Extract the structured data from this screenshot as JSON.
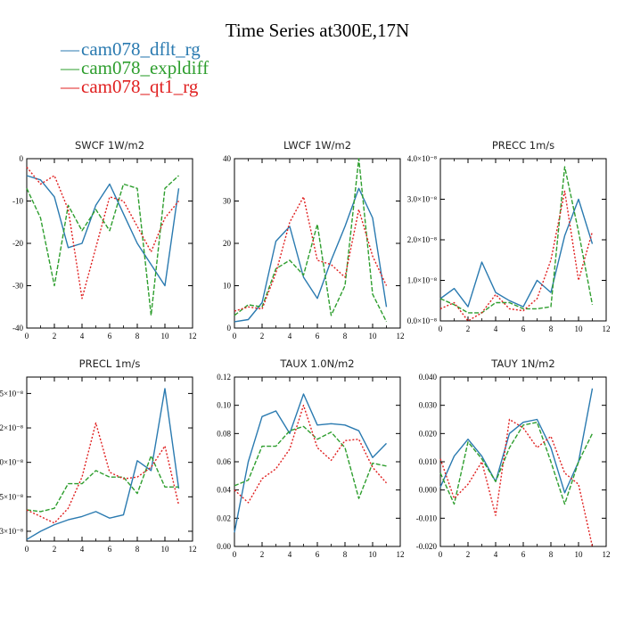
{
  "figure": {
    "title": "Time Series at300E,17N",
    "colors": {
      "dflt": "#2a7ab0",
      "expl": "#2e9e2e",
      "qt1": "#e02020"
    },
    "legend": [
      {
        "label": "cam078_dflt_rg",
        "color": "#2a7ab0",
        "marker": "—"
      },
      {
        "label": "cam078_expldiff",
        "color": "#2e9e2e",
        "marker": "—"
      },
      {
        "label": "cam078_qt1_rg",
        "color": "#e02020",
        "marker": "—"
      }
    ]
  },
  "chart_data": [
    {
      "type": "line",
      "title": "SWCF   1W/m2",
      "xlim": [
        0,
        12
      ],
      "ylim": [
        -40,
        0
      ],
      "x_ticks": [
        0,
        2,
        4,
        6,
        8,
        10,
        12
      ],
      "x_tick_labels": [
        "0",
        "2",
        "4",
        "6",
        "8",
        "10",
        "12"
      ],
      "y_ticks": [
        -40,
        -30,
        -20,
        -10,
        0
      ],
      "y_tick_labels": [
        "-40",
        "-30",
        "-20",
        "-10",
        "0"
      ],
      "x": [
        0,
        1,
        2,
        3,
        4,
        5,
        6,
        7,
        8,
        9,
        10,
        11
      ],
      "series": [
        {
          "name": "cam078_dflt_rg",
          "values": [
            -4,
            -5,
            -9,
            -21,
            -20,
            -11,
            -6,
            -13,
            -20,
            -25,
            -30,
            -7
          ]
        },
        {
          "name": "cam078_expldiff",
          "values": [
            -7,
            -14,
            -30,
            -11,
            -17,
            -12,
            -17,
            -6,
            -7,
            -37,
            -7,
            -4
          ]
        },
        {
          "name": "cam078_qt1_rg",
          "values": [
            -2,
            -6,
            -4,
            -12,
            -33,
            -21,
            -9,
            -10,
            -16,
            -22,
            -14,
            -10
          ]
        }
      ]
    },
    {
      "type": "line",
      "title": "LWCF   1W/m2",
      "xlim": [
        0,
        12
      ],
      "ylim": [
        0,
        40
      ],
      "x_ticks": [
        0,
        2,
        4,
        6,
        8,
        10,
        12
      ],
      "x_tick_labels": [
        "0",
        "2",
        "4",
        "6",
        "8",
        "10",
        "12"
      ],
      "y_ticks": [
        0,
        10,
        20,
        30,
        40
      ],
      "y_tick_labels": [
        "0",
        "10",
        "20",
        "30",
        "40"
      ],
      "x": [
        0,
        1,
        2,
        3,
        4,
        5,
        6,
        7,
        8,
        9,
        10,
        11
      ],
      "series": [
        {
          "name": "cam078_dflt_rg",
          "values": [
            1.5,
            2,
            6,
            20.5,
            24,
            12,
            7,
            16,
            24,
            33,
            26,
            5
          ]
        },
        {
          "name": "cam078_expldiff",
          "values": [
            3,
            5.5,
            5,
            14,
            16,
            12.5,
            24.5,
            3,
            10,
            40,
            8,
            1.5
          ]
        },
        {
          "name": "cam078_qt1_rg",
          "values": [
            4,
            5,
            4.5,
            13,
            25,
            31,
            16,
            15,
            12,
            28,
            17,
            10
          ]
        }
      ]
    },
    {
      "type": "line",
      "title": "PRECC   1m/s",
      "xlim": [
        0,
        12
      ],
      "ylim": [
        0,
        4e-08
      ],
      "x_ticks": [
        0,
        2,
        4,
        6,
        8,
        10,
        12
      ],
      "x_tick_labels": [
        "0",
        "2",
        "4",
        "6",
        "8",
        "10",
        "12"
      ],
      "y_ticks": [
        0,
        1e-08,
        2e-08,
        3e-08,
        4e-08
      ],
      "y_tick_labels": [
        "0.0×10⁻⁸",
        "1.0×10⁻⁸",
        "2.0×10⁻⁸",
        "3.0×10⁻⁸",
        "4.0×10⁻⁸"
      ],
      "x": [
        0,
        1,
        2,
        3,
        4,
        5,
        6,
        7,
        8,
        9,
        10,
        11
      ],
      "series": [
        {
          "name": "cam078_dflt_rg",
          "values": [
            5.5e-09,
            8e-09,
            3.5e-09,
            1.45e-08,
            7e-09,
            5e-09,
            3.5e-09,
            1e-08,
            7e-09,
            2.1e-08,
            3e-08,
            1.9e-08
          ]
        },
        {
          "name": "cam078_expldiff",
          "values": [
            5.5e-09,
            4e-09,
            2e-09,
            2e-09,
            4.5e-09,
            4.5e-09,
            3e-09,
            3e-09,
            3.5e-09,
            3.8e-08,
            2.2e-08,
            4e-09
          ]
        },
        {
          "name": "cam078_qt1_rg",
          "values": [
            3e-09,
            4.5e-09,
            0,
            2e-09,
            6.5e-09,
            3e-09,
            2.5e-09,
            5.5e-09,
            1.5e-08,
            3.2e-08,
            1e-08,
            2.2e-08
          ]
        }
      ]
    },
    {
      "type": "line",
      "title": "PRECL   1m/s",
      "xlim": [
        0,
        12
      ],
      "ylim": [
        0,
        1
      ],
      "x_ticks": [
        0,
        2,
        4,
        6,
        8,
        10,
        12
      ],
      "x_tick_labels": [
        "0",
        "2",
        "4",
        "6",
        "8",
        "10",
        "12"
      ],
      "y_ticks": [
        0.06,
        0.27,
        0.48,
        0.69,
        0.9
      ],
      "y_tick_labels": [
        "3×10⁻⁸",
        "5×10⁻⁸",
        "0×10⁻⁸",
        "2×10⁻⁸",
        "5×10⁻⁸"
      ],
      "x": [
        0,
        1,
        2,
        3,
        4,
        5,
        6,
        7,
        8,
        9,
        10,
        11
      ],
      "series": [
        {
          "name": "cam078_dflt_rg",
          "values": [
            0.01,
            0.06,
            0.1,
            0.13,
            0.15,
            0.18,
            0.14,
            0.16,
            0.49,
            0.43,
            0.93,
            0.32
          ]
        },
        {
          "name": "cam078_expldiff",
          "values": [
            0.19,
            0.18,
            0.2,
            0.35,
            0.35,
            0.43,
            0.39,
            0.39,
            0.29,
            0.52,
            0.33,
            0.33
          ]
        },
        {
          "name": "cam078_qt1_rg",
          "values": [
            0.19,
            0.15,
            0.11,
            0.2,
            0.39,
            0.72,
            0.42,
            0.38,
            0.39,
            0.45,
            0.58,
            0.22
          ]
        }
      ]
    },
    {
      "type": "line",
      "title": "TAUX   1.0N/m2",
      "xlim": [
        0,
        12
      ],
      "ylim": [
        0,
        0.12
      ],
      "x_ticks": [
        0,
        2,
        4,
        6,
        8,
        10,
        12
      ],
      "x_tick_labels": [
        "0",
        "2",
        "4",
        "6",
        "8",
        "10",
        "12"
      ],
      "y_ticks": [
        0,
        0.02,
        0.04,
        0.06,
        0.08,
        0.1,
        0.12
      ],
      "y_tick_labels": [
        "0.00",
        "0.02",
        "0.04",
        "0.06",
        "0.08",
        "0.10",
        "0.12"
      ],
      "x": [
        0,
        1,
        2,
        3,
        4,
        5,
        6,
        7,
        8,
        9,
        10,
        11
      ],
      "series": [
        {
          "name": "cam078_dflt_rg",
          "values": [
            0.01,
            0.06,
            0.092,
            0.096,
            0.08,
            0.108,
            0.086,
            0.087,
            0.086,
            0.082,
            0.063,
            0.073
          ]
        },
        {
          "name": "cam078_expldiff",
          "values": [
            0.043,
            0.047,
            0.071,
            0.071,
            0.082,
            0.085,
            0.076,
            0.081,
            0.07,
            0.034,
            0.059,
            0.057
          ]
        },
        {
          "name": "cam078_qt1_rg",
          "values": [
            0.04,
            0.031,
            0.048,
            0.055,
            0.069,
            0.1,
            0.07,
            0.061,
            0.075,
            0.076,
            0.056,
            0.045
          ]
        }
      ]
    },
    {
      "type": "line",
      "title": "TAUY   1N/m2",
      "xlim": [
        0,
        12
      ],
      "ylim": [
        -0.02,
        0.04
      ],
      "x_ticks": [
        0,
        2,
        4,
        6,
        8,
        10,
        12
      ],
      "x_tick_labels": [
        "0",
        "2",
        "4",
        "6",
        "8",
        "10",
        "12"
      ],
      "y_ticks": [
        -0.02,
        -0.01,
        0,
        0.01,
        0.02,
        0.03,
        0.04
      ],
      "y_tick_labels": [
        "-0.020",
        "-0.010",
        "0.000",
        "0.010",
        "0.020",
        "0.030",
        "0.040"
      ],
      "x": [
        0,
        1,
        2,
        3,
        4,
        5,
        6,
        7,
        8,
        9,
        10,
        11
      ],
      "series": [
        {
          "name": "cam078_dflt_rg",
          "values": [
            0.001,
            0.012,
            0.018,
            0.012,
            0.003,
            0.02,
            0.024,
            0.025,
            0.015,
            -0.001,
            0.01,
            0.036
          ]
        },
        {
          "name": "cam078_expldiff",
          "values": [
            0.006,
            -0.005,
            0.017,
            0.011,
            0.003,
            0.015,
            0.023,
            0.024,
            0.01,
            -0.005,
            0.01,
            0.02
          ]
        },
        {
          "name": "cam078_qt1_rg",
          "values": [
            0.011,
            -0.003,
            0.002,
            0.01,
            -0.009,
            0.025,
            0.022,
            0.015,
            0.019,
            0.006,
            0.002,
            -0.02
          ]
        }
      ]
    }
  ]
}
